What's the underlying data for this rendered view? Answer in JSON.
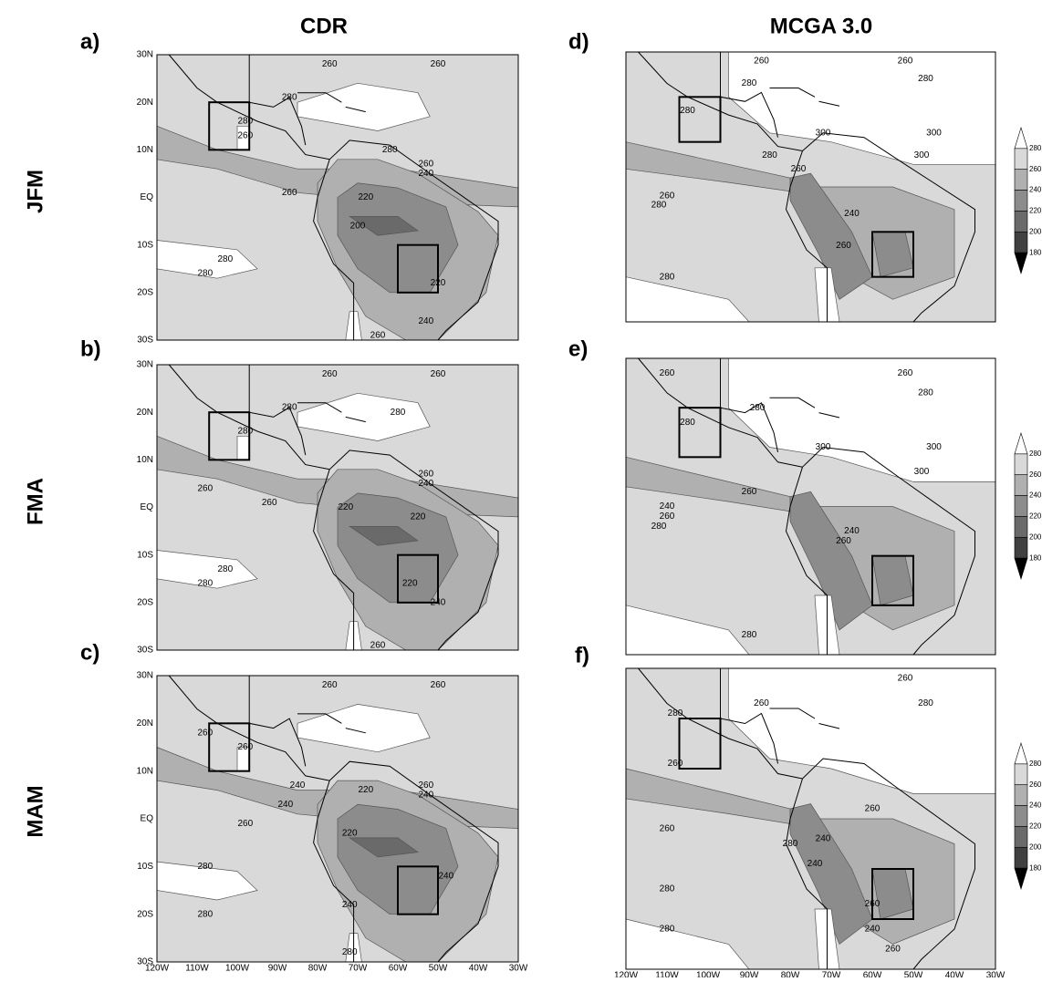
{
  "column_titles": [
    "CDR",
    "MCGA 3.0"
  ],
  "row_titles": [
    "JFM",
    "FMA",
    "MAM"
  ],
  "lat_ticks": [
    "30N",
    "20N",
    "10N",
    "EQ",
    "10S",
    "20S",
    "30S"
  ],
  "lon_ticks": [
    "120W",
    "110W",
    "100W",
    "90W",
    "80W",
    "70W",
    "60W",
    "50W",
    "40W",
    "30W"
  ],
  "colorbar_labels": [
    "280",
    "260",
    "240",
    "220",
    "200",
    "180"
  ],
  "panels": [
    {
      "label": "a)",
      "contour_labels": [
        "260",
        "260",
        "280",
        "280",
        "280",
        "260",
        "260",
        "240",
        "260",
        "220",
        "200",
        "280",
        "280",
        "220",
        "240",
        "260"
      ]
    },
    {
      "label": "b)",
      "contour_labels": [
        "260",
        "260",
        "280",
        "280",
        "280",
        "260",
        "260",
        "240",
        "260",
        "220",
        "220",
        "280",
        "280",
        "220",
        "240",
        "260"
      ]
    },
    {
      "label": "c)",
      "contour_labels": [
        "260",
        "260",
        "260",
        "260",
        "240",
        "240",
        "260",
        "220",
        "240",
        "260",
        "220",
        "280",
        "280",
        "240",
        "240",
        "280"
      ]
    },
    {
      "label": "d)",
      "contour_labels": [
        "260",
        "260",
        "280",
        "280",
        "280",
        "300",
        "300",
        "300",
        "280",
        "260",
        "260",
        "280",
        "240",
        "260",
        "280"
      ]
    },
    {
      "label": "e)",
      "contour_labels": [
        "260",
        "260",
        "280",
        "280",
        "280",
        "300",
        "300",
        "300",
        "260",
        "240",
        "260",
        "280",
        "240",
        "260",
        "280"
      ]
    },
    {
      "label": "f)",
      "contour_labels": [
        "260",
        "260",
        "280",
        "280",
        "260",
        "260",
        "240",
        "280",
        "260",
        "240",
        "260",
        "280",
        "240",
        "260",
        "280"
      ]
    }
  ]
}
